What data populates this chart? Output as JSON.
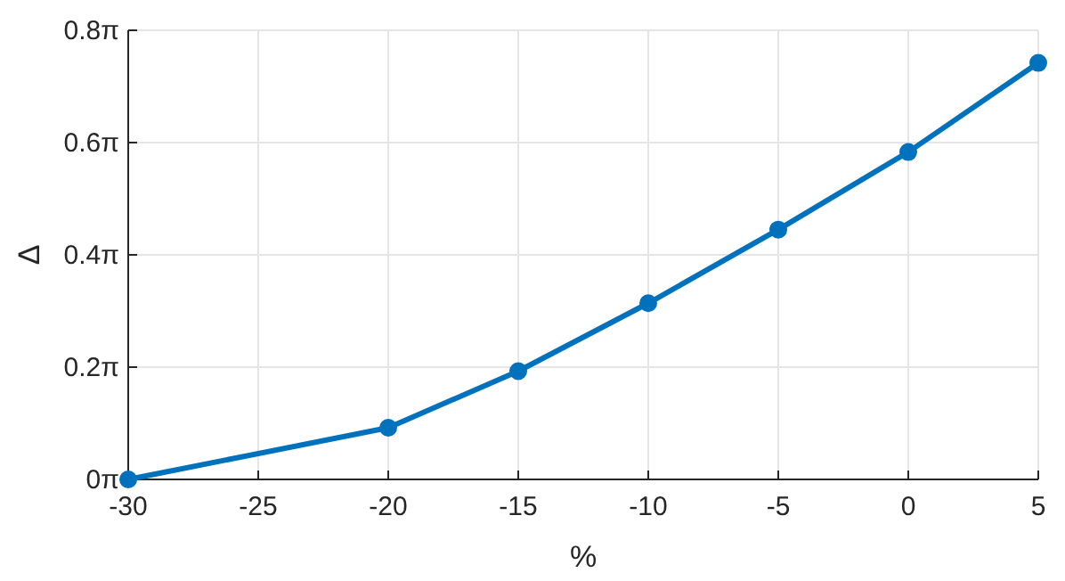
{
  "chart_data": {
    "type": "line",
    "xlabel": "%",
    "ylabel": "Δ",
    "x": [
      -30,
      -20,
      -15,
      -10,
      -5,
      0,
      5
    ],
    "series": [
      {
        "color": "#0072bd",
        "values": [
          0,
          0.289,
          0.606,
          0.986,
          1.398,
          1.832,
          2.331
        ]
      }
    ],
    "xlim": [
      -30,
      5
    ],
    "xticks": [
      -30,
      -25,
      -20,
      -15,
      -10,
      -5,
      0,
      5
    ],
    "ylim": [
      0,
      2.5133
    ],
    "yticks": [
      {
        "value": 0,
        "label": "0π"
      },
      {
        "value": 0.6283,
        "label": "0.2π"
      },
      {
        "value": 1.2566,
        "label": "0.4π"
      },
      {
        "value": 1.885,
        "label": "0.6π"
      },
      {
        "value": 2.5133,
        "label": "0.8π"
      }
    ],
    "grid": true,
    "marker": "circle",
    "line_style": "solid"
  }
}
